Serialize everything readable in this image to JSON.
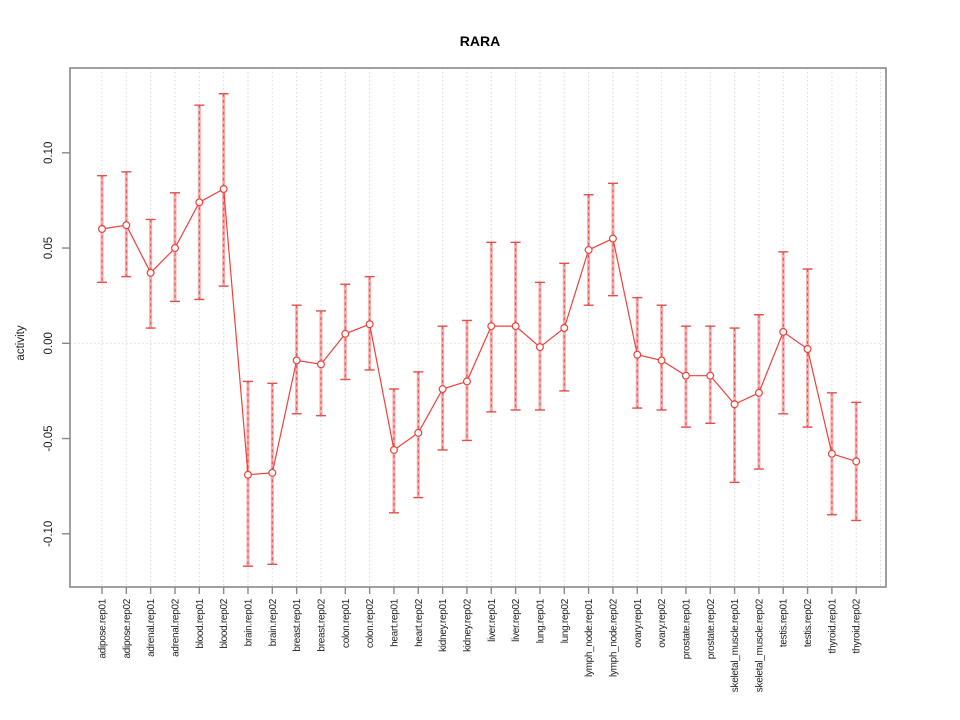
{
  "title": "RARA",
  "chart_data": {
    "type": "line",
    "title": "RARA",
    "xlabel": "",
    "ylabel": "activity",
    "ylim": [
      -0.125,
      0.14
    ],
    "yticks": [
      0.1,
      0.05,
      0.0,
      -0.05,
      -0.1
    ],
    "ytick_labels": [
      "0.10",
      "0.05",
      "0.00",
      "-0.05",
      "-0.10"
    ],
    "grid": "vertical dotted gridline per category plus dotted horizontal line at y=0",
    "legend": "none",
    "marker": "open-circle",
    "error_bars": true,
    "categories": [
      "adipose.rep01",
      "adipose.rep02",
      "adrenal.rep01",
      "adrenal.rep02",
      "blood.rep01",
      "blood.rep02",
      "brain.rep01",
      "brain.rep02",
      "breast.rep01",
      "breast.rep02",
      "colon.rep01",
      "colon.rep02",
      "heart.rep01",
      "heart.rep02",
      "kidney.rep01",
      "kidney.rep02",
      "liver.rep01",
      "liver.rep02",
      "lung.rep01",
      "lung.rep02",
      "lymph_node.rep01",
      "lymph_node.rep02",
      "ovary.rep01",
      "ovary.rep02",
      "prostate.rep01",
      "prostate.rep02",
      "skeletal_muscle.rep01",
      "skeletal_muscle.rep02",
      "testis.rep01",
      "testis.rep02",
      "thyroid.rep01",
      "thyroid.rep02"
    ],
    "series": [
      {
        "name": "activity",
        "values": [
          0.06,
          0.062,
          0.037,
          0.05,
          0.074,
          0.081,
          -0.069,
          -0.068,
          -0.009,
          -0.011,
          0.005,
          0.01,
          -0.056,
          -0.047,
          -0.024,
          -0.02,
          0.009,
          0.009,
          -0.002,
          0.008,
          0.049,
          0.055,
          -0.006,
          -0.009,
          -0.017,
          -0.017,
          -0.032,
          -0.026,
          0.006,
          -0.003,
          -0.058,
          -0.062
        ],
        "upper": [
          0.088,
          0.09,
          0.065,
          0.079,
          0.125,
          0.131,
          -0.02,
          -0.021,
          0.02,
          0.017,
          0.031,
          0.035,
          -0.024,
          -0.015,
          0.009,
          0.012,
          0.053,
          0.053,
          0.032,
          0.042,
          0.078,
          0.084,
          0.024,
          0.02,
          0.009,
          0.009,
          0.008,
          0.015,
          0.048,
          0.039,
          -0.026,
          -0.031
        ],
        "lower": [
          0.032,
          0.035,
          0.008,
          0.022,
          0.023,
          0.03,
          -0.117,
          -0.116,
          -0.037,
          -0.038,
          -0.019,
          -0.014,
          -0.089,
          -0.081,
          -0.056,
          -0.051,
          -0.036,
          -0.035,
          -0.035,
          -0.025,
          0.02,
          0.025,
          -0.034,
          -0.035,
          -0.044,
          -0.042,
          -0.073,
          -0.066,
          -0.037,
          -0.044,
          -0.09,
          -0.093
        ]
      }
    ],
    "colors": {
      "line": "#ef403c",
      "marker_stroke": "#ef403c",
      "error_bar_fill": "#f7abab",
      "error_bar_dash": "#e14f4b",
      "gridline": "#d9d9d9",
      "axis_box": "#898989",
      "text": "#1f1f1f"
    }
  }
}
